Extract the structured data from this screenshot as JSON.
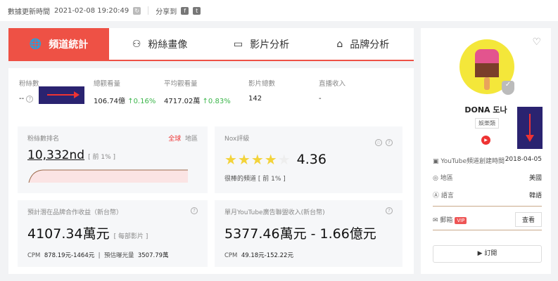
{
  "topbar": {
    "update_label": "數據更新時間",
    "update_time": "2021-02-08 19:20:49",
    "share_label": "分享到",
    "facebook": "f",
    "twitter": "t"
  },
  "tabs": [
    {
      "label": "頻道統計",
      "icon": "globe-icon"
    },
    {
      "label": "粉絲畫像",
      "icon": "users-icon"
    },
    {
      "label": "影片分析",
      "icon": "video-icon"
    },
    {
      "label": "品牌分析",
      "icon": "brand-icon"
    }
  ],
  "stats": [
    {
      "label": "粉絲數",
      "value": "--"
    },
    {
      "label": "總觀看量",
      "value": "106.74億",
      "change": "↑0.16%"
    },
    {
      "label": "平均觀看量",
      "value": "4717.02萬",
      "change": "↑0.83%"
    },
    {
      "label": "影片總數",
      "value": "142"
    },
    {
      "label": "直播收入",
      "value": "-"
    }
  ],
  "rank": {
    "title": "粉絲數排名",
    "global": "全球",
    "region": "地區",
    "value": "10,332nd",
    "pct": "[ 前 1% ]"
  },
  "nox": {
    "title": "Nox評級",
    "rating": 4.36,
    "rating_text": "4.36",
    "desc": "很棒的頻道 [ 前 1% ]"
  },
  "brand": {
    "title": "預計潛在品牌合作收益（新台幣）",
    "value": "4107.34萬元",
    "suffix": "[ 每部影片 ]",
    "cpm_label": "CPM",
    "cpm": "878.19元-1464元",
    "exposure_label": "預估曝光量",
    "exposure": "3507.79萬"
  },
  "ads": {
    "title": "單月YouTube廣告聯盟收入(新台幣)",
    "value": "5377.46萬元 - 1.66億元",
    "cpm_label": "CPM",
    "cpm": "49.18元-152.22元"
  },
  "profile": {
    "name": "DONA 도나",
    "category": "娛樂類",
    "created_label": "YouTube頻道創建時間",
    "created": "2018-04-05",
    "region_label": "地區",
    "region": "美國",
    "lang_label": "語言",
    "lang": "韓語",
    "email_label": "郵箱",
    "vip": "VIP",
    "view": "查看",
    "subscribe": "訂閱"
  }
}
